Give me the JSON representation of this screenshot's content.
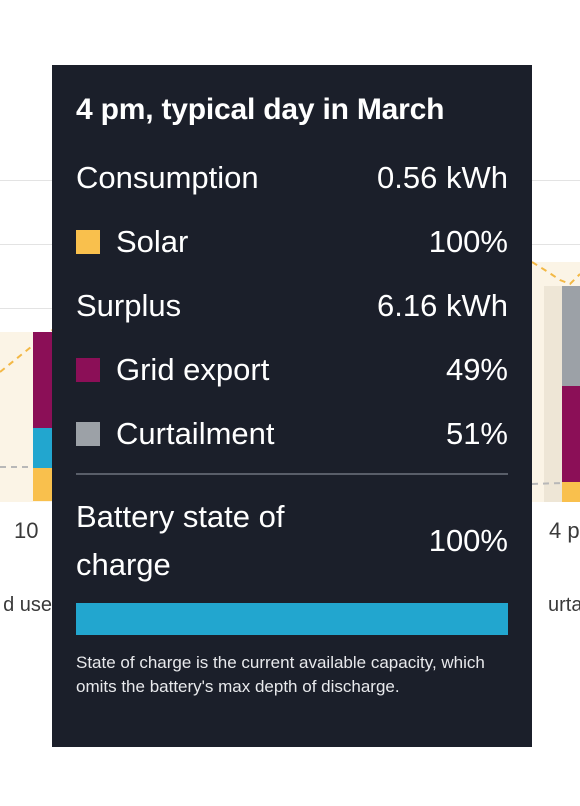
{
  "colors": {
    "tooltip_bg": "#1b1f2a",
    "solar": "#f9c04d",
    "grid_export": "#8b0f57",
    "curtailment": "#9ca1a7",
    "battery": "#22a6cf"
  },
  "background_chart": {
    "tick_left": "10",
    "tick_right": "4 p",
    "legend_left_fragment": "d use",
    "legend_right_fragment": "urtail"
  },
  "tooltip": {
    "title": "4 pm, typical day in March",
    "consumption": {
      "label": "Consumption",
      "value": "0.56 kWh"
    },
    "solar": {
      "label": "Solar",
      "value": "100%",
      "swatch_icon": "square-swatch-icon"
    },
    "surplus": {
      "label": "Surplus",
      "value": "6.16 kWh"
    },
    "grid_export": {
      "label": "Grid export",
      "value": "49%",
      "swatch_icon": "square-swatch-icon"
    },
    "curtailment": {
      "label": "Curtailment",
      "value": "51%",
      "swatch_icon": "square-swatch-icon"
    },
    "battery": {
      "label": "Battery state of charge",
      "value": "100%",
      "fill_fraction": 1.0
    },
    "note": "State of charge is the current available capacity, which omits the battery's max depth of discharge."
  }
}
